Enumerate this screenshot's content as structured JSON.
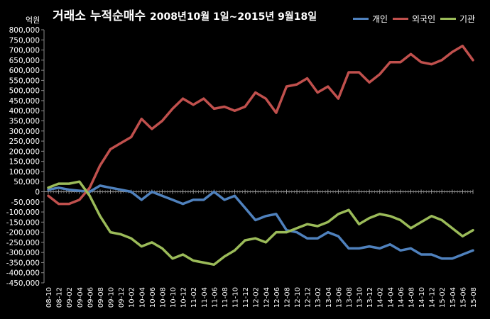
{
  "chart_data": {
    "type": "line",
    "title": "거래소 누적순매수",
    "subtitle": "2008년10월 1일~2015년 9월18일",
    "ylabel": "억원",
    "xlabel": "",
    "ylim": [
      -450000,
      800000
    ],
    "ytick_step": 50000,
    "grid": false,
    "legend_position": "top-right",
    "categories": [
      "08-10",
      "08-12",
      "09-02",
      "09-04",
      "09-06",
      "09-08",
      "09-10",
      "09-12",
      "10-02",
      "10-04",
      "10-06",
      "10-08",
      "10-10",
      "10-12",
      "11-02",
      "11-04",
      "11-06",
      "11-08",
      "11-10",
      "11-12",
      "12-02",
      "12-04",
      "12-06",
      "12-08",
      "12-10",
      "12-12",
      "13-02",
      "13-04",
      "13-06",
      "13-08",
      "13-10",
      "13-12",
      "14-02",
      "14-04",
      "14-06",
      "14-08",
      "14-10",
      "14-12",
      "15-02",
      "15-04",
      "15-06",
      "15-08"
    ],
    "series": [
      {
        "name": "개인",
        "color": "#4f81bd",
        "values": [
          10000,
          20000,
          10000,
          5000,
          0,
          30000,
          20000,
          10000,
          0,
          -40000,
          0,
          -20000,
          -40000,
          -60000,
          -40000,
          -40000,
          0,
          -40000,
          -20000,
          -80000,
          -140000,
          -120000,
          -110000,
          -190000,
          -200000,
          -230000,
          -230000,
          -200000,
          -220000,
          -280000,
          -280000,
          -270000,
          -280000,
          -260000,
          -290000,
          -280000,
          -310000,
          -310000,
          -330000,
          -330000,
          -310000,
          -290000
        ]
      },
      {
        "name": "외국인",
        "color": "#c0504d",
        "values": [
          -20000,
          -60000,
          -60000,
          -40000,
          20000,
          130000,
          210000,
          240000,
          270000,
          360000,
          310000,
          350000,
          410000,
          460000,
          430000,
          460000,
          410000,
          420000,
          400000,
          420000,
          490000,
          460000,
          390000,
          520000,
          530000,
          560000,
          490000,
          520000,
          460000,
          590000,
          590000,
          540000,
          580000,
          640000,
          640000,
          680000,
          640000,
          630000,
          650000,
          690000,
          720000,
          650000
        ]
      },
      {
        "name": "기관",
        "color": "#9bbb59",
        "values": [
          20000,
          40000,
          40000,
          50000,
          -20000,
          -120000,
          -200000,
          -210000,
          -230000,
          -270000,
          -250000,
          -280000,
          -330000,
          -310000,
          -340000,
          -350000,
          -360000,
          -320000,
          -290000,
          -240000,
          -230000,
          -250000,
          -200000,
          -200000,
          -180000,
          -160000,
          -170000,
          -150000,
          -110000,
          -90000,
          -160000,
          -130000,
          -110000,
          -120000,
          -140000,
          -180000,
          -150000,
          -120000,
          -140000,
          -180000,
          -220000,
          -190000
        ]
      }
    ]
  }
}
